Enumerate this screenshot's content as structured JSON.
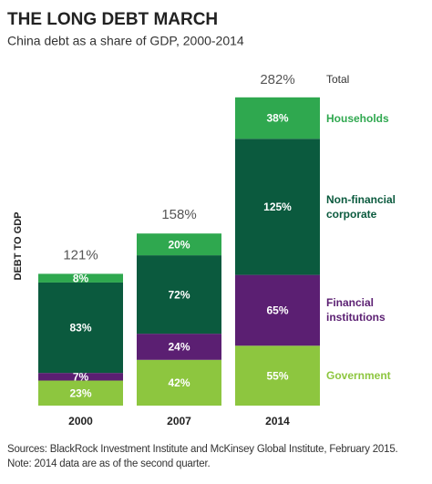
{
  "chart_data": {
    "type": "stacked_bar",
    "title": "THE LONG DEBT MARCH",
    "subtitle": "China debt as a share of GDP, 2000-2014",
    "y_axis_label": "DEBT TO GDP",
    "categories": [
      "2000",
      "2007",
      "2014"
    ],
    "series": [
      {
        "name": "Government",
        "color": "#8dc63f",
        "values": [
          23,
          42,
          55
        ],
        "value_labels": [
          "23%",
          "42%",
          "55%"
        ]
      },
      {
        "name": "Financial institutions",
        "color": "#5b1f72",
        "values": [
          7,
          24,
          65
        ],
        "value_labels": [
          "7%",
          "24%",
          "65%"
        ]
      },
      {
        "name": "Non-financial corporate",
        "color": "#0b5a3e",
        "values": [
          83,
          72,
          125
        ],
        "value_labels": [
          "83%",
          "72%",
          "125%"
        ]
      },
      {
        "name": "Households",
        "color": "#2fa84f",
        "values": [
          8,
          20,
          38
        ],
        "value_labels": [
          "8%",
          "20%",
          "38%"
        ]
      }
    ],
    "totals": [
      121,
      158,
      282
    ],
    "total_labels": [
      "121%",
      "158%",
      "282%"
    ],
    "total_legend": "Total",
    "sources": "Sources: BlackRock Investment Institute and McKinsey Global Institute, February 2015.",
    "note": "Note: 2014 data are as of the second quarter."
  }
}
